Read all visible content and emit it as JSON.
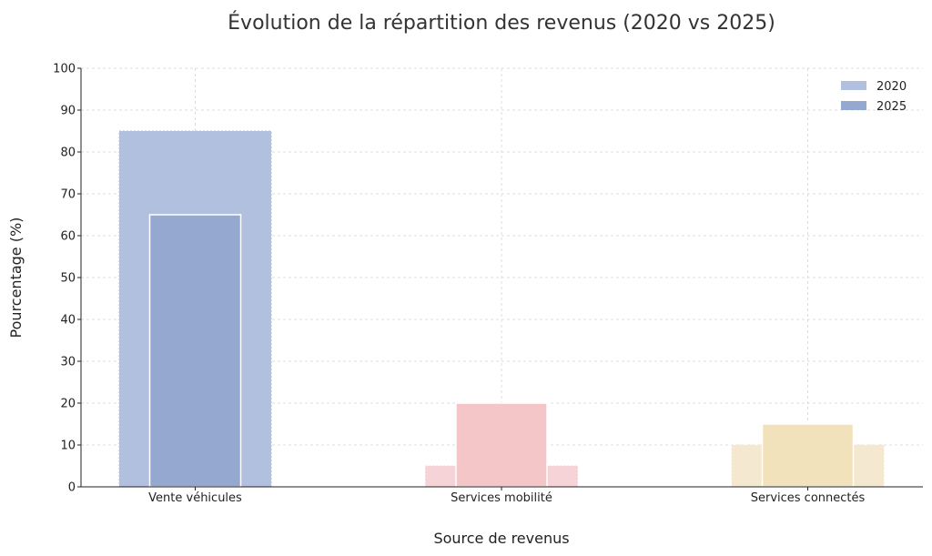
{
  "chart_data": {
    "type": "bar",
    "title": "Évolution de la répartition des revenus (2020 vs 2025)",
    "xlabel": "Source de revenus",
    "ylabel": "Pourcentage (%)",
    "ylim": [
      0,
      100
    ],
    "yticks": [
      0,
      10,
      20,
      30,
      40,
      50,
      60,
      70,
      80,
      90,
      100
    ],
    "grid": true,
    "legend_position": "top-right",
    "categories": [
      "Vente véhicules",
      "Services mobilité",
      "Services connectés"
    ],
    "series": [
      {
        "name": "2020",
        "values": [
          85,
          5,
          10
        ]
      },
      {
        "name": "2025",
        "values": [
          65,
          20,
          15
        ]
      }
    ],
    "colors": {
      "Vente véhicules": {
        "2020": "#b0c0de",
        "2025": "#94a8d0"
      },
      "Services mobilité": {
        "2020": "#f6d3d6",
        "2025": "#f4c6c7"
      },
      "Services connectés": {
        "2020": "#f5e8d0",
        "2025": "#f2e2bc"
      }
    },
    "legend_colors": {
      "2020": "#b0c0de",
      "2025": "#94a8d0"
    }
  }
}
